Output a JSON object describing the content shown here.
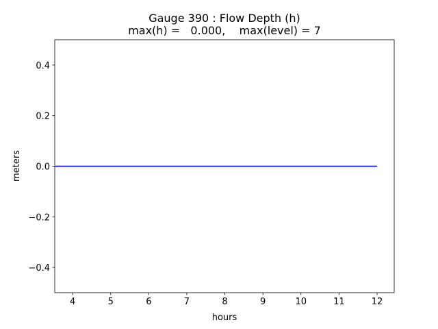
{
  "chart_data": {
    "type": "line",
    "title": [
      "Gauge 390 : Flow Depth (h)",
      "max(h) =   0.000,    max(level) = 7"
    ],
    "xlabel": "hours",
    "ylabel": "meters",
    "x": [
      3.53,
      12
    ],
    "series": [
      {
        "color": "#0000ff",
        "values": [
          0,
          0
        ]
      }
    ],
    "xlim": [
      3.53,
      12.45
    ],
    "xticks": [
      4,
      5,
      6,
      7,
      8,
      9,
      10,
      11,
      12
    ],
    "ylim": [
      -0.5,
      0.5
    ],
    "yticks": [
      {
        "value": -0.4,
        "label": "−0.4"
      },
      {
        "value": -0.2,
        "label": "−0.2"
      },
      {
        "value": 0,
        "label": "0.0"
      },
      0.2,
      0.4
    ],
    "grid": false
  }
}
